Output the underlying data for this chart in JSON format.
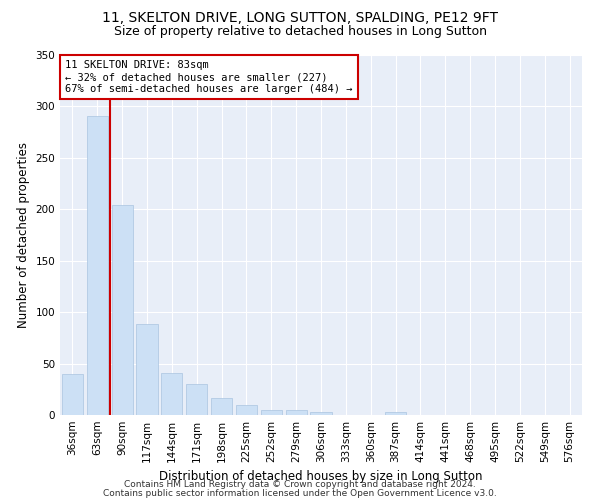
{
  "title": "11, SKELTON DRIVE, LONG SUTTON, SPALDING, PE12 9FT",
  "subtitle": "Size of property relative to detached houses in Long Sutton",
  "xlabel": "Distribution of detached houses by size in Long Sutton",
  "ylabel": "Number of detached properties",
  "footnote1": "Contains HM Land Registry data © Crown copyright and database right 2024.",
  "footnote2": "Contains public sector information licensed under the Open Government Licence v3.0.",
  "bar_labels": [
    "36sqm",
    "63sqm",
    "90sqm",
    "117sqm",
    "144sqm",
    "171sqm",
    "198sqm",
    "225sqm",
    "252sqm",
    "279sqm",
    "306sqm",
    "333sqm",
    "360sqm",
    "387sqm",
    "414sqm",
    "441sqm",
    "468sqm",
    "495sqm",
    "522sqm",
    "549sqm",
    "576sqm"
  ],
  "bar_values": [
    40,
    291,
    204,
    88,
    41,
    30,
    17,
    10,
    5,
    5,
    3,
    0,
    0,
    3,
    0,
    0,
    0,
    0,
    0,
    0,
    0
  ],
  "bar_color": "#cce0f5",
  "bar_edgecolor": "#aac4e0",
  "property_line_label": "11 SKELTON DRIVE: 83sqm",
  "annotation_line1": "← 32% of detached houses are smaller (227)",
  "annotation_line2": "67% of semi-detached houses are larger (484) →",
  "annotation_box_color": "#ffffff",
  "annotation_box_edgecolor": "#cc0000",
  "vline_color": "#cc0000",
  "vline_xindex": 1.5,
  "ylim": [
    0,
    350
  ],
  "yticks": [
    0,
    50,
    100,
    150,
    200,
    250,
    300,
    350
  ],
  "bg_color": "#e8eef8",
  "grid_color": "#ffffff",
  "title_fontsize": 10,
  "subtitle_fontsize": 9,
  "axis_label_fontsize": 8.5,
  "tick_fontsize": 7.5,
  "footnote_fontsize": 6.5
}
